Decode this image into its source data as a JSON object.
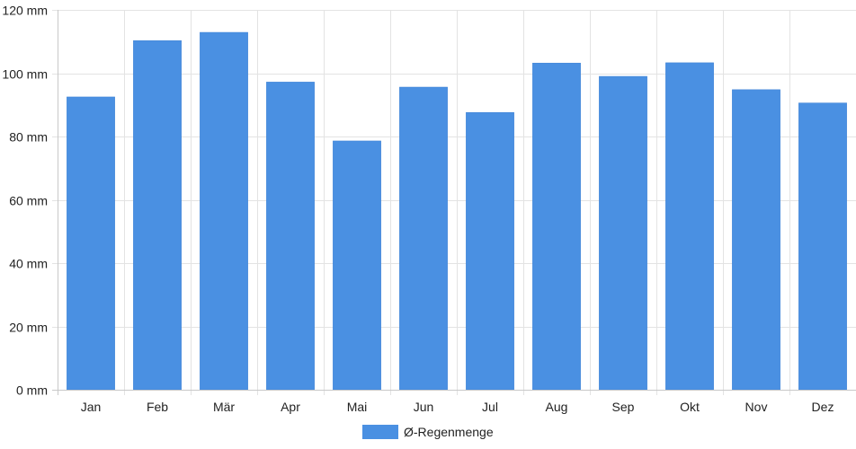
{
  "chart_data": {
    "type": "bar",
    "categories": [
      "Jan",
      "Feb",
      "Mär",
      "Apr",
      "Mai",
      "Jun",
      "Jul",
      "Aug",
      "Sep",
      "Okt",
      "Nov",
      "Dez"
    ],
    "series": [
      {
        "name": "Ø-Regenmenge",
        "color": "#4a90e2",
        "values": [
          92.5,
          110.3,
          112.9,
          97.2,
          78.6,
          95.6,
          87.6,
          103.2,
          99.0,
          103.3,
          94.8,
          90.6
        ]
      }
    ],
    "yticks": [
      "0 mm",
      "20 mm",
      "40 mm",
      "60 mm",
      "80 mm",
      "100 mm",
      "120 mm"
    ],
    "ylim": [
      0,
      120
    ],
    "grid": true,
    "legend": "bottom",
    "title": "",
    "xlabel": "",
    "ylabel": ""
  }
}
